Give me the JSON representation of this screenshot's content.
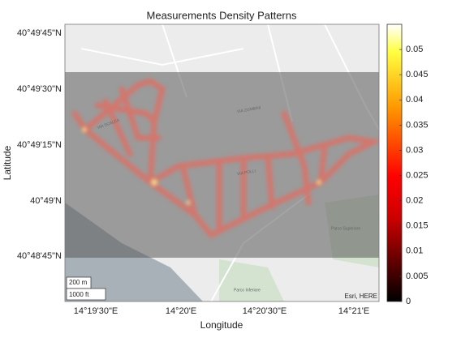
{
  "title": "Measurements Density Patterns",
  "x_label": "Longitude",
  "y_label": "Latitude",
  "x_tick_labels": [
    "14°19'30\"E",
    "14°20'E",
    "14°20'30\"E",
    "14°21'E"
  ],
  "y_tick_labels": [
    "40°49'45\"N",
    "40°49'30\"N",
    "40°49'15\"N",
    "40°49'N",
    "40°48'45\"N"
  ],
  "colorbar": {
    "lim": [
      0,
      0.055
    ],
    "ticks": [
      0,
      0.005,
      0.01,
      0.015,
      0.02,
      0.025,
      0.03,
      0.035,
      0.04,
      0.045,
      0.05
    ]
  },
  "scale_bar": {
    "metric": "200 m",
    "imperial": "1000 ft"
  },
  "attribution": "Esri, HERE",
  "map_labels": {
    "via_scalea": "VIA SCALEA",
    "via_zumbini": "VIA ZUMBINI",
    "via_polli": "VIA POLLI",
    "parco_inferiore": "Parco Inferiore",
    "parco_superiore": "Parco Superiore"
  }
}
